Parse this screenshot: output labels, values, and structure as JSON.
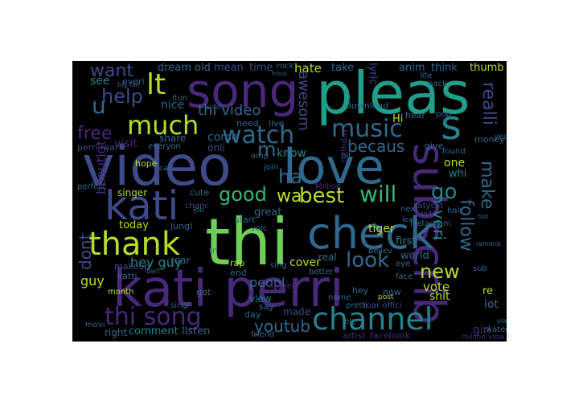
{
  "palette": [
    "#440154",
    "#482878",
    "#3e4a89",
    "#31688e",
    "#26828e",
    "#1f9e89",
    "#35b779",
    "#6ece58",
    "#b5de2b",
    "#fde725"
  ],
  "words": [
    {
      "text": "pleas",
      "color": "#1f9e89"
    },
    {
      "text": "song",
      "color": "#482878"
    },
    {
      "text": "video",
      "color": "#3e4a89"
    },
    {
      "text": "love",
      "color": "#31688e"
    },
    {
      "text": "subscrib",
      "color": "#482878"
    },
    {
      "text": "kati",
      "color": "#3e4a89"
    },
    {
      "text": "thi",
      "color": "#6ece58"
    },
    {
      "text": "check",
      "color": "#31688e"
    },
    {
      "text": "kati perri",
      "color": "#482878"
    },
    {
      "text": "thank",
      "color": "#b5de2b"
    },
    {
      "text": "channel",
      "color": "#26828e"
    },
    {
      "text": "music",
      "color": "#31688e"
    },
    {
      "text": "much",
      "color": "#b5de2b"
    },
    {
      "text": "watch",
      "color": "#31688e"
    },
    {
      "text": "s",
      "color": "#26828e"
    },
    {
      "text": "lt",
      "color": "#b5de2b"
    },
    {
      "text": "help",
      "color": "#3e4a89"
    },
    {
      "text": "want",
      "color": "#3e4a89"
    },
    {
      "text": "u",
      "color": "#31688e"
    },
    {
      "text": "free",
      "color": "#482878"
    },
    {
      "text": "awesom",
      "color": "#3e4a89"
    },
    {
      "text": "realli",
      "color": "#3e4a89"
    },
    {
      "text": "follow",
      "color": "#31688e"
    },
    {
      "text": "make",
      "color": "#31688e"
    },
    {
      "text": "go",
      "color": "#26828e"
    },
    {
      "text": "will",
      "color": "#35b779"
    },
    {
      "text": "best",
      "color": "#b5de2b"
    },
    {
      "text": "good",
      "color": "#35b779"
    },
    {
      "text": "wa",
      "color": "#b5de2b"
    },
    {
      "text": "ha",
      "color": "#31688e"
    },
    {
      "text": "m",
      "color": "#31688e"
    },
    {
      "text": "beautigt",
      "color": "#482878"
    },
    {
      "text": "look",
      "color": "#31688e"
    },
    {
      "text": "new",
      "color": "#b5de2b"
    },
    {
      "text": "veri",
      "color": "#26828e"
    },
    {
      "text": "thi song",
      "color": "#482878"
    },
    {
      "text": "youtub",
      "color": "#31688e"
    },
    {
      "text": "dont",
      "color": "#3e4a89"
    },
    {
      "text": "hey guy",
      "color": "#26828e"
    },
    {
      "text": "guy",
      "color": "#b5de2b"
    },
    {
      "text": "thi video",
      "color": "#31688e"
    },
    {
      "text": "nice",
      "color": "#31688e"
    },
    {
      "text": "becaus",
      "color": "#31688e"
    },
    {
      "text": "know",
      "color": "#26828e"
    },
    {
      "text": "come",
      "color": "#31688e"
    },
    {
      "text": "share",
      "color": "#31688e"
    },
    {
      "text": "onli",
      "color": "#3e4a89"
    },
    {
      "text": "visit",
      "color": "#482878"
    },
    {
      "text": "see",
      "color": "#26828e"
    },
    {
      "text": "dream",
      "color": "#31688e"
    },
    {
      "text": "old",
      "color": "#31688e"
    },
    {
      "text": "mean",
      "color": "#3e4a89"
    },
    {
      "text": "time",
      "color": "#3e4a89"
    },
    {
      "text": "hate",
      "color": "#b5de2b"
    },
    {
      "text": "take",
      "color": "#31688e"
    },
    {
      "text": "anim",
      "color": "#31688e"
    },
    {
      "text": "think",
      "color": "#31688e"
    },
    {
      "text": "thumb",
      "color": "#b5de2b"
    },
    {
      "text": "lyric",
      "color": "#3e4a89"
    },
    {
      "text": "tiger",
      "color": "#b5de2b"
    },
    {
      "text": "cover",
      "color": "#b5de2b"
    },
    {
      "text": "peopl",
      "color": "#31688e"
    },
    {
      "text": "world",
      "color": "#31688e"
    },
    {
      "text": "first",
      "color": "#26828e"
    },
    {
      "text": "vote",
      "color": "#b5de2b"
    },
    {
      "text": "shit",
      "color": "#b5de2b"
    },
    {
      "text": "girl",
      "color": "#482878"
    },
    {
      "text": "lot",
      "color": "#31688e"
    },
    {
      "text": "today",
      "color": "#b5de2b"
    },
    {
      "text": "one",
      "color": "#b5de2b"
    },
    {
      "text": "whi",
      "color": "#26828e"
    },
    {
      "text": "comment",
      "color": "#26828e"
    },
    {
      "text": "listen",
      "color": "#31688e"
    },
    {
      "text": "right",
      "color": "#31688e"
    },
    {
      "text": "view",
      "color": "#26828e"
    },
    {
      "text": "made",
      "color": "#3e4a89"
    },
    {
      "text": "artist",
      "color": "#482878"
    },
    {
      "text": "facebook",
      "color": "#482878"
    },
    {
      "text": "singer",
      "color": "#b5de2b"
    },
    {
      "text": "great",
      "color": "#31688e"
    },
    {
      "text": "need",
      "color": "#31688e"
    },
    {
      "text": "live",
      "color": "#31688e"
    },
    {
      "text": "download",
      "color": "#31688e"
    },
    {
      "text": "hear",
      "color": "#31688e"
    },
    {
      "text": "money",
      "color": "#31688e"
    },
    {
      "text": "perri roar",
      "color": "#3e4a89"
    },
    {
      "text": "everi",
      "color": "#31688e"
    },
    {
      "text": "hope",
      "color": "#b5de2b"
    },
    {
      "text": "cute",
      "color": "#31688e"
    },
    {
      "text": "jungl",
      "color": "#31688e"
    },
    {
      "text": "start",
      "color": "#31688e"
    },
    {
      "text": "rap",
      "color": "#b5de2b"
    },
    {
      "text": "end",
      "color": "#31688e"
    },
    {
      "text": "sing",
      "color": "#31688e"
    },
    {
      "text": "real",
      "color": "#31688e"
    },
    {
      "text": "better",
      "color": "#31688e"
    },
    {
      "text": "pretti",
      "color": "#31688e"
    },
    {
      "text": "now",
      "color": "#31688e"
    },
    {
      "text": "hey",
      "color": "#31688e"
    },
    {
      "text": "instagram",
      "color": "#31688e"
    },
    {
      "text": "makeup",
      "color": "#3e4a89"
    },
    {
      "text": "katti",
      "color": "#31688e"
    },
    {
      "text": "got",
      "color": "#31688e"
    },
    {
      "text": "say",
      "color": "#31688e"
    },
    {
      "text": "day",
      "color": "#31688e"
    },
    {
      "text": "friend",
      "color": "#31688e"
    },
    {
      "text": "roar",
      "color": "#31688e"
    },
    {
      "text": "Hi",
      "color": "#b5de2b"
    },
    {
      "text": "re",
      "color": "#b5de2b"
    },
    {
      "text": "post",
      "color": "#b5de2b"
    },
    {
      "text": "eye",
      "color": "#31688e"
    },
    {
      "text": "face",
      "color": "#31688e"
    },
    {
      "text": "name",
      "color": "#31688e"
    },
    {
      "text": "rock",
      "color": "#31688e"
    },
    {
      "text": "next",
      "color": "#31688e"
    },
    {
      "text": "hair",
      "color": "#31688e"
    },
    {
      "text": "sub",
      "color": "#31688e"
    },
    {
      "text": "found",
      "color": "#31688e"
    },
    {
      "text": "pop",
      "color": "#31688e"
    },
    {
      "text": "chanc",
      "color": "#3e4a89"
    },
    {
      "text": "join",
      "color": "#31688e"
    },
    {
      "text": "amp",
      "color": "#31688e"
    },
    {
      "text": "voic",
      "color": "#31688e"
    },
    {
      "text": "believ",
      "color": "#31688e"
    },
    {
      "text": "hit",
      "color": "#31688e"
    },
    {
      "text": "give",
      "color": "#31688e"
    },
    {
      "text": "month",
      "color": "#b5de2b"
    },
    {
      "text": "movi",
      "color": "#31688e"
    },
    {
      "text": "singl",
      "color": "#31688e"
    },
    {
      "text": "water",
      "color": "#31688e"
    },
    {
      "text": "plz",
      "color": "#31688e"
    },
    {
      "text": "million view",
      "color": "#482878"
    },
    {
      "text": "roar offici",
      "color": "#3e4a89"
    },
    {
      "text": "birthday",
      "color": "#482878"
    },
    {
      "text": "katycat",
      "color": "#3e4a89"
    },
    {
      "text": "Million",
      "color": "#482878"
    },
    {
      "text": "itun",
      "color": "#31688e"
    },
    {
      "text": "appreci",
      "color": "#482878"
    },
    {
      "text": "life",
      "color": "#31688e"
    },
    {
      "text": "back",
      "color": "#31688e"
    },
    {
      "text": "everyon",
      "color": "#31688e"
    },
    {
      "text": "year",
      "color": "#31688e"
    },
    {
      "text": "perfect",
      "color": "#31688e"
    },
    {
      "text": "call",
      "color": "#31688e"
    },
    {
      "text": "lead",
      "color": "#31688e"
    },
    {
      "text": "tri",
      "color": "#31688e"
    },
    {
      "text": "job",
      "color": "#31688e"
    },
    {
      "text": "big fan",
      "color": "#31688e"
    },
    {
      "text": "hous",
      "color": "#31688e"
    },
    {
      "text": "crash",
      "color": "#31688e"
    },
    {
      "text": "remenb",
      "color": "#31688e"
    },
    {
      "text": "part",
      "color": "#31688e"
    },
    {
      "text": "place",
      "color": "#31688e"
    },
    {
      "text": "put",
      "color": "#31688e"
    },
    {
      "text": "hot",
      "color": "#31688e"
    }
  ]
}
